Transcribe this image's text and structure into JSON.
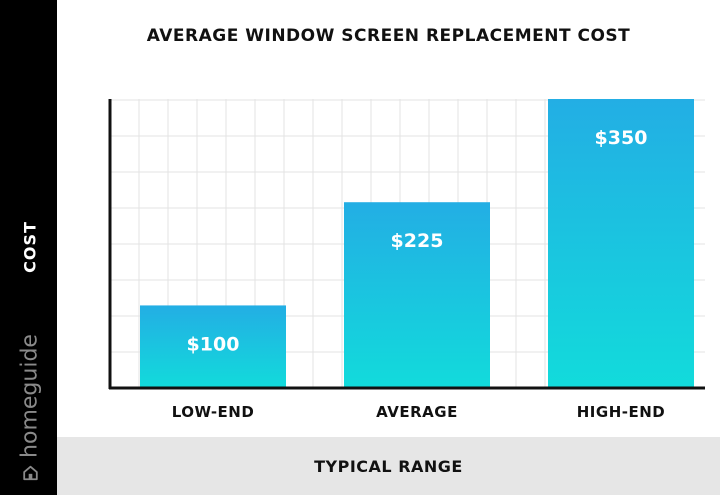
{
  "chart_data": {
    "type": "bar",
    "title": "AVERAGE WINDOW SCREEN REPLACEMENT COST",
    "xlabel": "TYPICAL RANGE",
    "ylabel": "COST",
    "categories": [
      "LOW-END",
      "AVERAGE",
      "HIGH-END"
    ],
    "values": [
      100,
      225,
      350
    ],
    "data_labels": [
      "$100",
      "$225",
      "$350"
    ],
    "ylim": [
      0,
      350
    ],
    "grid": true,
    "legend": "none",
    "colors": {
      "bar_top": "#23aee4",
      "bar_bottom": "#12dbdb",
      "grid": "#e3e3e3",
      "axis": "#111111"
    }
  },
  "brand": {
    "name": "homeguide",
    "icon": "house-icon"
  }
}
